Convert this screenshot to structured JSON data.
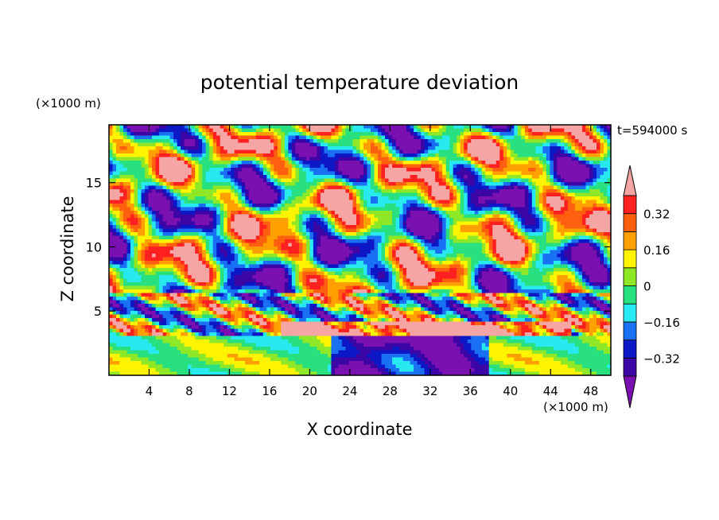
{
  "chart_data": {
    "type": "heatmap",
    "title": "potential temperature deviation",
    "xlabel": "X coordinate",
    "ylabel": "Z coordinate",
    "x_unit": "(×1000 m)",
    "y_unit": "(×1000 m)",
    "time_label": "t=594000 s",
    "xlim": [
      0,
      50
    ],
    "ylim": [
      0,
      19.5
    ],
    "x_ticks": [
      {
        "value": 4,
        "label": "4"
      },
      {
        "value": 8,
        "label": "8"
      },
      {
        "value": 12,
        "label": "12"
      },
      {
        "value": 16,
        "label": "16"
      },
      {
        "value": 20,
        "label": "20"
      },
      {
        "value": 24,
        "label": "24"
      },
      {
        "value": 28,
        "label": "28"
      },
      {
        "value": 32,
        "label": "32"
      },
      {
        "value": 36,
        "label": "36"
      },
      {
        "value": 40,
        "label": "40"
      },
      {
        "value": 44,
        "label": "44"
      },
      {
        "value": 48,
        "label": "48"
      }
    ],
    "y_ticks": [
      {
        "value": 5,
        "label": "5"
      },
      {
        "value": 10,
        "label": "10"
      },
      {
        "value": 15,
        "label": "15"
      }
    ],
    "colorbar": {
      "levels": [
        -0.4,
        -0.32,
        -0.24,
        -0.16,
        -0.08,
        0,
        0.08,
        0.16,
        0.24,
        0.32,
        0.4
      ],
      "tick_labels": [
        {
          "value": 0.32,
          "label": "0.32"
        },
        {
          "value": 0.16,
          "label": "0.16"
        },
        {
          "value": 0,
          "label": "0"
        },
        {
          "value": -0.16,
          "label": "−0.16"
        },
        {
          "value": -0.32,
          "label": "−0.32"
        }
      ],
      "colors": [
        "#7a10b0",
        "#3c06a6",
        "#0c18c6",
        "#1a70f2",
        "#28e8f0",
        "#28e080",
        "#8ee828",
        "#fff400",
        "#ffa000",
        "#ff6010",
        "#ff2020",
        "#f5a6a4"
      ]
    }
  }
}
